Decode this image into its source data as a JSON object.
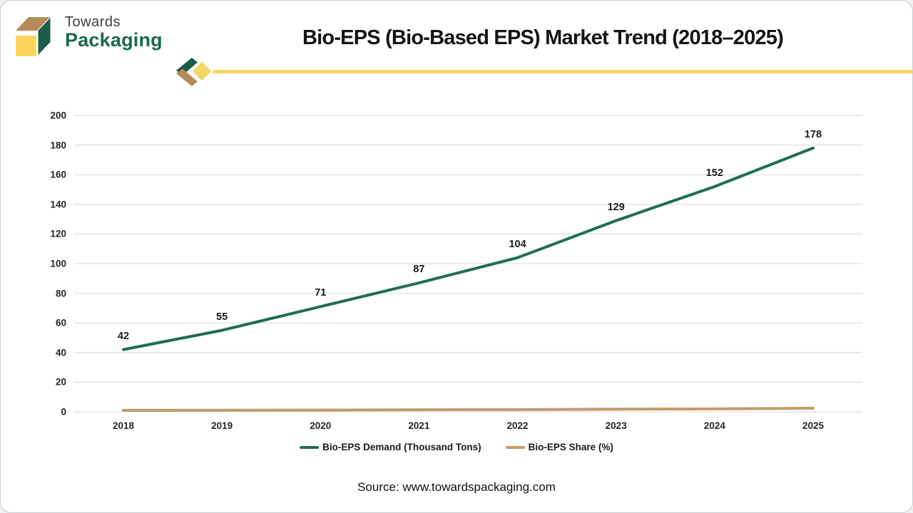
{
  "brand": {
    "line1": "Towards",
    "line2": "Packaging",
    "colors": {
      "box_top_tan": "#b68a58",
      "box_side_green": "#1d5c4a",
      "box_front_yellow": "#fad65f",
      "name_green": "#17694f"
    }
  },
  "header": {
    "title": "Bio-EPS (Bio-Based EPS) Market Trend (2018–2025)",
    "underline_color": "#f6d664"
  },
  "chart_data": {
    "type": "line",
    "title": "Bio-EPS (Bio-Based EPS) Market Trend (2018–2025)",
    "categories": [
      "2018",
      "2019",
      "2020",
      "2021",
      "2022",
      "2023",
      "2024",
      "2025"
    ],
    "series": [
      {
        "name": "Bio-EPS Demand (Thousand Tons)",
        "color": "#1e6d55",
        "values": [
          42,
          55,
          71,
          87,
          104,
          129,
          152,
          178
        ],
        "data_labels": true
      },
      {
        "name": "Bio-EPS Share (%)",
        "color": "#c59a6a",
        "values": [
          1,
          1.1,
          1.2,
          1.4,
          1.5,
          1.8,
          2,
          2.4
        ],
        "data_labels": false
      }
    ],
    "xlabel": "",
    "ylabel": "",
    "ylim": [
      0,
      200
    ],
    "ytick_step": 20,
    "grid": true,
    "gridline_color": "#d9d9d9",
    "legend_position": "bottom"
  },
  "footer": {
    "source_text": "Source: www.towardspackaging.com"
  }
}
